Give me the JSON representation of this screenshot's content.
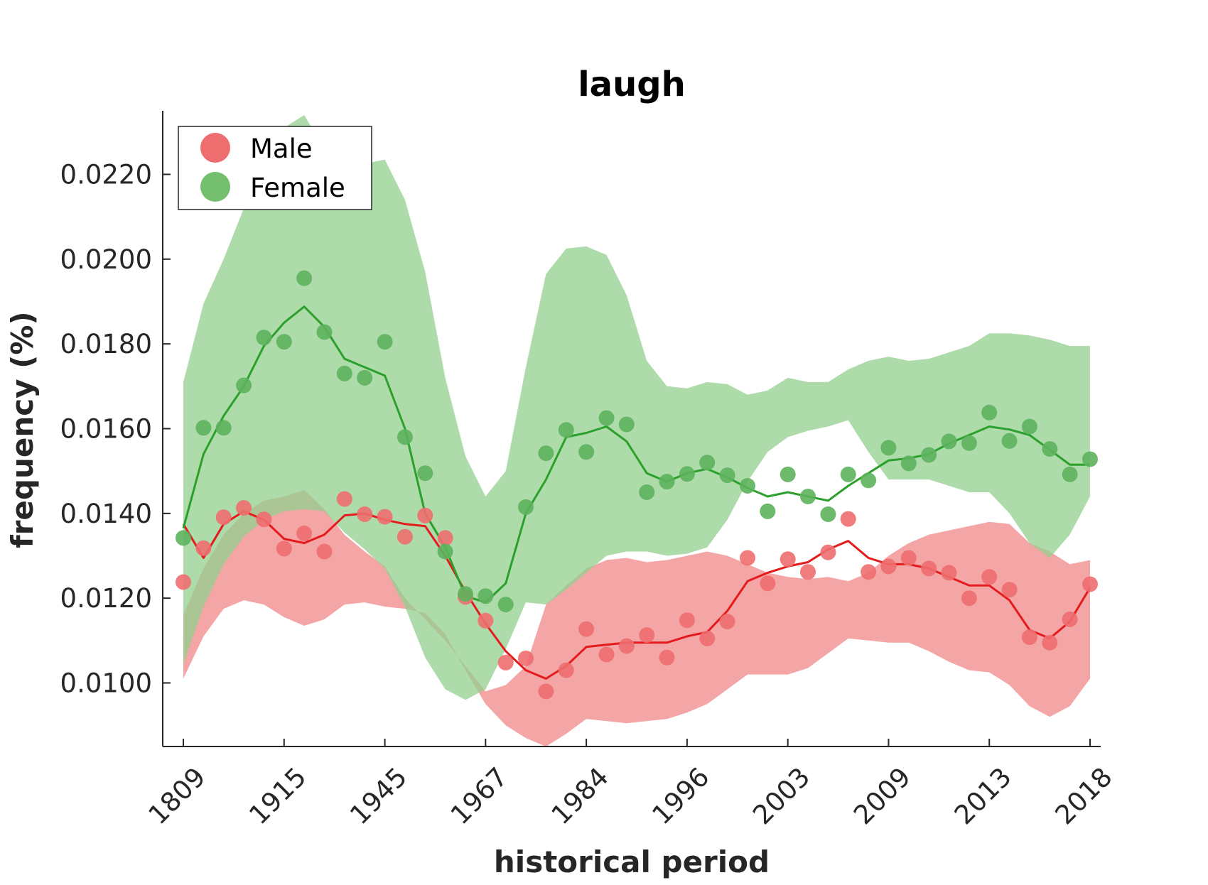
{
  "chart_data": {
    "type": "line",
    "title": "laugh",
    "xlabel": "historical period",
    "ylabel": "frequency (%)",
    "ylim": [
      0.0085,
      0.0235
    ],
    "yticks": [
      "0.0100",
      "0.0120",
      "0.0140",
      "0.0160",
      "0.0180",
      "0.0200",
      "0.0220"
    ],
    "ytick_values": [
      0.01,
      0.012,
      0.014,
      0.016,
      0.018,
      0.02,
      0.022
    ],
    "xtick_labels": [
      "1809",
      "1915",
      "1945",
      "1967",
      "1984",
      "1996",
      "2003",
      "2009",
      "2013",
      "2018"
    ],
    "xtick_positions": [
      0,
      5,
      10,
      15,
      20,
      25,
      30,
      35,
      40,
      45
    ],
    "x_count": 46,
    "legend": {
      "position": "top-left",
      "entries": [
        "Male",
        "Female"
      ]
    },
    "grid": false,
    "series": [
      {
        "name": "Male",
        "color": "#e41a1c",
        "marker_color": "#ee6e6f",
        "band_color": "#f0888a",
        "points": [
          0.01238,
          0.01318,
          0.01391,
          0.01413,
          0.01386,
          0.01317,
          0.01353,
          0.0131,
          0.01434,
          0.01398,
          0.01392,
          0.01345,
          0.01395,
          0.01342,
          0.01203,
          0.01147,
          0.01048,
          0.01058,
          0.0098,
          0.0103,
          0.01127,
          0.01067,
          0.01087,
          0.01113,
          0.0106,
          0.01148,
          0.01105,
          0.01145,
          0.01295,
          0.01235,
          0.01292,
          0.01262,
          0.01308,
          0.01387,
          0.01262,
          0.01275,
          0.01295,
          0.0127,
          0.0126,
          0.012,
          0.0125,
          0.0122,
          0.01108,
          0.01095,
          0.0115,
          0.01233
        ],
        "trend": [
          0.01375,
          0.01295,
          0.01375,
          0.01405,
          0.01385,
          0.0134,
          0.0133,
          0.0135,
          0.01395,
          0.014,
          0.01385,
          0.01375,
          0.0137,
          0.013,
          0.01215,
          0.0114,
          0.01075,
          0.0103,
          0.0101,
          0.0104,
          0.01085,
          0.0109,
          0.01095,
          0.01095,
          0.01095,
          0.0111,
          0.0112,
          0.0117,
          0.0124,
          0.0126,
          0.01275,
          0.01285,
          0.01315,
          0.01335,
          0.01295,
          0.0128,
          0.0128,
          0.0127,
          0.0125,
          0.0123,
          0.0123,
          0.01195,
          0.01125,
          0.01105,
          0.01145,
          0.01225
        ],
        "band_upper": [
          0.0116,
          0.0127,
          0.0135,
          0.014,
          0.0143,
          0.0144,
          0.01455,
          0.0141,
          0.0135,
          0.0131,
          0.01275,
          0.012,
          0.0115,
          0.011,
          0.0104,
          0.0098,
          0.00995,
          0.0104,
          0.01185,
          0.0123,
          0.0127,
          0.0129,
          0.01295,
          0.01285,
          0.0129,
          0.013,
          0.0131,
          0.013,
          0.0128,
          0.0126,
          0.0125,
          0.01245,
          0.0125,
          0.0124,
          0.0126,
          0.013,
          0.0133,
          0.0135,
          0.0136,
          0.0137,
          0.0138,
          0.01375,
          0.0133,
          0.0131,
          0.0128,
          0.0129
        ],
        "band_lower": [
          0.0101,
          0.0111,
          0.01175,
          0.01195,
          0.01185,
          0.01155,
          0.01135,
          0.0115,
          0.01185,
          0.0119,
          0.0118,
          0.01175,
          0.01165,
          0.01115,
          0.0103,
          0.0095,
          0.009,
          0.0087,
          0.0085,
          0.0088,
          0.00915,
          0.0091,
          0.00905,
          0.0091,
          0.00915,
          0.0093,
          0.0095,
          0.00985,
          0.0102,
          0.0102,
          0.0102,
          0.01035,
          0.0107,
          0.01105,
          0.011,
          0.01095,
          0.01095,
          0.01075,
          0.0105,
          0.0103,
          0.01025,
          0.00995,
          0.00945,
          0.0092,
          0.00945,
          0.0101
        ]
      },
      {
        "name": "Female",
        "color": "#2ca02c",
        "marker_color": "#5db35d",
        "band_color": "#93cf8d",
        "points": [
          0.01342,
          0.01602,
          0.01602,
          0.01702,
          0.01815,
          0.01805,
          0.01955,
          0.01828,
          0.0173,
          0.0172,
          0.01805,
          0.0158,
          0.01495,
          0.0131,
          0.0121,
          0.01205,
          0.01185,
          0.01415,
          0.01542,
          0.01597,
          0.01545,
          0.01625,
          0.0161,
          0.0145,
          0.01475,
          0.01493,
          0.0152,
          0.0149,
          0.01465,
          0.01405,
          0.01492,
          0.0144,
          0.01398,
          0.01492,
          0.01478,
          0.01555,
          0.01518,
          0.01538,
          0.0157,
          0.01566,
          0.01638,
          0.01571,
          0.01605,
          0.01552,
          0.01492,
          0.01528
        ],
        "trend": [
          0.01365,
          0.0154,
          0.0163,
          0.017,
          0.01795,
          0.0185,
          0.01888,
          0.0184,
          0.01765,
          0.01745,
          0.01725,
          0.016,
          0.014,
          0.0132,
          0.01205,
          0.0119,
          0.01235,
          0.014,
          0.0148,
          0.0158,
          0.0159,
          0.01605,
          0.0157,
          0.01495,
          0.01475,
          0.01495,
          0.01505,
          0.01485,
          0.0146,
          0.0144,
          0.0145,
          0.0144,
          0.0143,
          0.01465,
          0.01495,
          0.01525,
          0.0153,
          0.0154,
          0.01565,
          0.01585,
          0.01605,
          0.01598,
          0.01585,
          0.0155,
          0.01515,
          0.01515
        ],
        "band_upper": [
          0.0171,
          0.01895,
          0.02,
          0.0212,
          0.0224,
          0.0231,
          0.0234,
          0.0226,
          0.0219,
          0.02225,
          0.02235,
          0.0214,
          0.0197,
          0.0172,
          0.01535,
          0.0144,
          0.015,
          0.01745,
          0.01965,
          0.02025,
          0.0203,
          0.0201,
          0.01915,
          0.0176,
          0.017,
          0.01695,
          0.0171,
          0.01705,
          0.0168,
          0.0169,
          0.0172,
          0.0171,
          0.0171,
          0.0174,
          0.0176,
          0.0177,
          0.0176,
          0.01765,
          0.0178,
          0.01795,
          0.01825,
          0.01825,
          0.0182,
          0.0181,
          0.01795,
          0.01795
        ],
        "band_lower": [
          0.01045,
          0.0118,
          0.0128,
          0.01345,
          0.01385,
          0.01405,
          0.0141,
          0.01405,
          0.01355,
          0.01315,
          0.0127,
          0.0118,
          0.0106,
          0.00985,
          0.0096,
          0.00985,
          0.0108,
          0.0119,
          0.01185,
          0.0122,
          0.0126,
          0.013,
          0.0131,
          0.0131,
          0.013,
          0.01305,
          0.0132,
          0.01385,
          0.01475,
          0.01545,
          0.0158,
          0.01595,
          0.01605,
          0.0162,
          0.01545,
          0.0148,
          0.0148,
          0.0148,
          0.01465,
          0.0145,
          0.0145,
          0.014,
          0.0133,
          0.01295,
          0.0135,
          0.0144
        ]
      }
    ]
  }
}
